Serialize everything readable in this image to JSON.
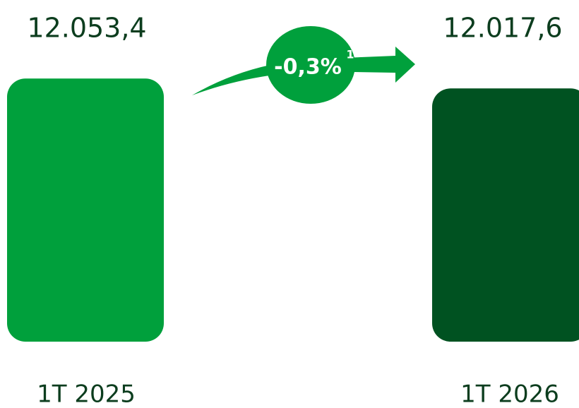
{
  "chart_data": {
    "type": "bar",
    "categories": [
      "1T 2025",
      "1T 2026"
    ],
    "values": [
      12053.4,
      12017.6
    ],
    "value_labels": [
      "12.053,4",
      "12.017,6"
    ],
    "colors": [
      "#00a03c",
      "#005221"
    ],
    "ylim": [
      11100,
      12200
    ],
    "annotation": {
      "text": "-0,3%",
      "footnote": "1"
    }
  }
}
